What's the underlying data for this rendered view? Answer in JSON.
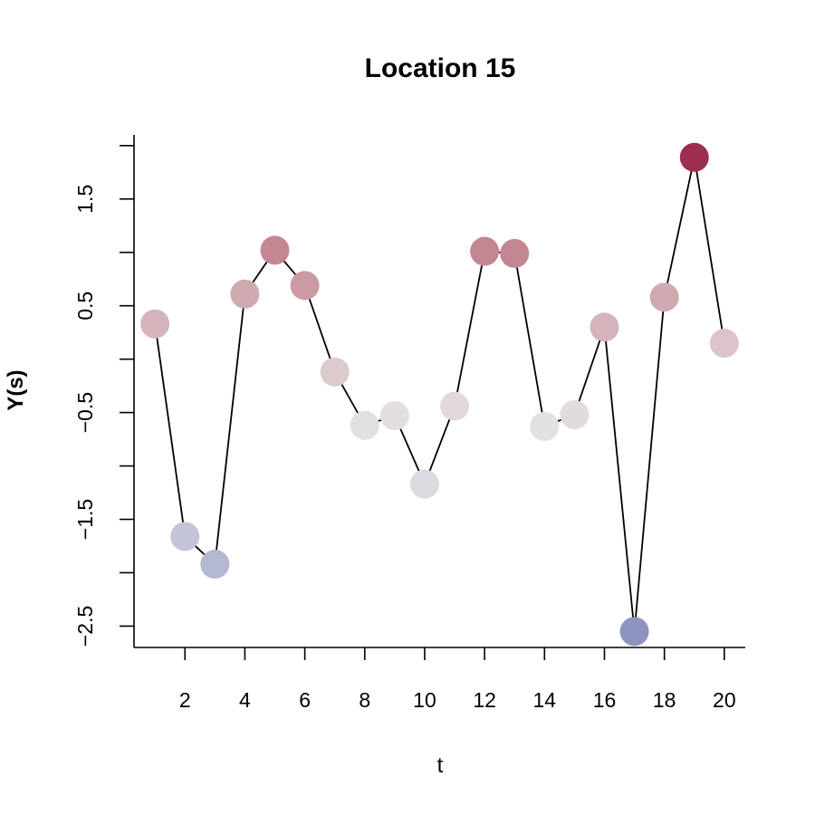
{
  "chart_data": {
    "type": "line",
    "title": "Location 15",
    "xlabel": "t",
    "ylabel": "Y(s)",
    "x": [
      1,
      2,
      3,
      4,
      5,
      6,
      7,
      8,
      9,
      10,
      11,
      12,
      13,
      14,
      15,
      16,
      17,
      18,
      19,
      20
    ],
    "series": [
      {
        "values": [
          0.33,
          -1.66,
          -1.92,
          0.61,
          1.02,
          0.69,
          -0.12,
          -0.62,
          -0.53,
          -1.17,
          -0.44,
          1.01,
          0.99,
          -0.63,
          -0.52,
          0.3,
          -2.55,
          0.58,
          1.89,
          0.15
        ]
      }
    ],
    "point_colors": [
      "#d4b3bb",
      "#c3c4d8",
      "#b5b8d2",
      "#d1a9b1",
      "#c48792",
      "#cb9aa3",
      "#dccacd",
      "#e0dfe2",
      "#e2dddf",
      "#d9dbe1",
      "#e1d8da",
      "#c48792",
      "#c48792",
      "#e1e0e3",
      "#e1dbdd",
      "#d4b3bb",
      "#8d94c0",
      "#d1a9b1",
      "#9e2e50",
      "#dbc5ca"
    ],
    "xlim": [
      0.3,
      20.7
    ],
    "ylim": [
      -2.7,
      2.1
    ],
    "x_ticks": [
      2,
      4,
      6,
      8,
      10,
      12,
      14,
      16,
      18,
      20
    ],
    "x_tick_labels": [
      "2",
      "4",
      "6",
      "8",
      "10",
      "12",
      "14",
      "16",
      "18",
      "20"
    ],
    "y_ticks": [
      -2.5,
      -2,
      -1.5,
      -1,
      -0.5,
      0,
      0.5,
      1,
      1.5,
      2
    ],
    "y_tick_labels": [
      "−2.5",
      "",
      "−1.5",
      "",
      "−0.5",
      "",
      "0.5",
      "",
      "1.5",
      ""
    ],
    "grid": false,
    "legend": "none"
  }
}
